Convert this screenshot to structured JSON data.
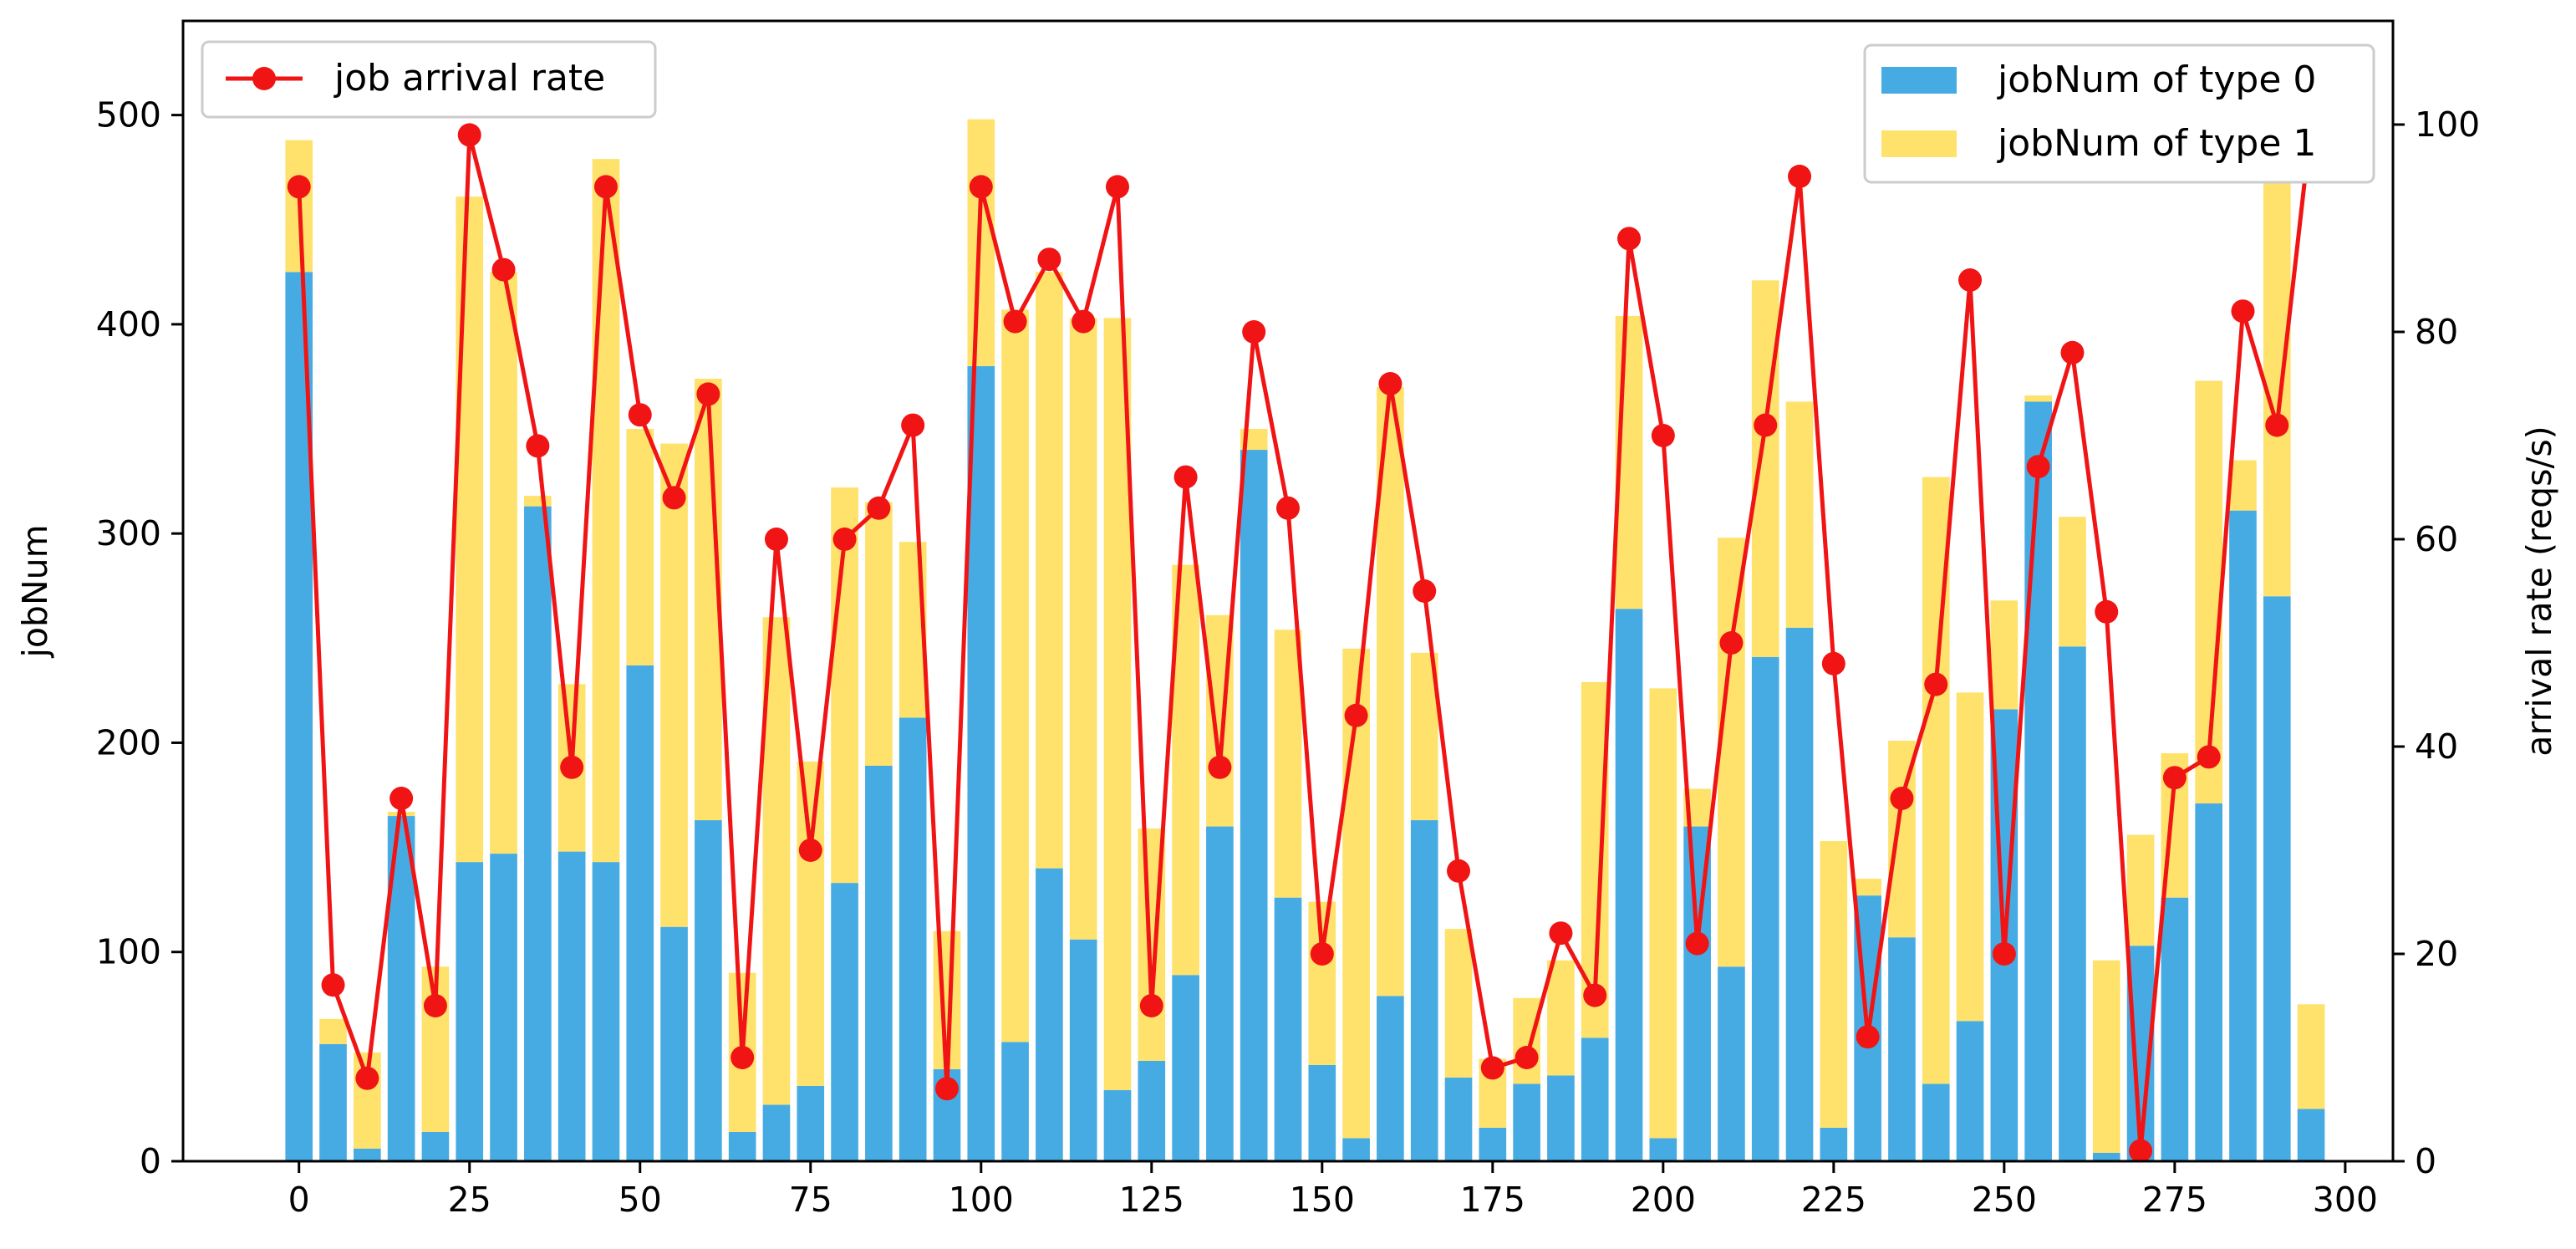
{
  "colors": {
    "type0": "#47ABE3",
    "type1": "#FEE26B",
    "rate": "#F01414",
    "axis": "#000000",
    "legend_border": "#CCCCCC"
  },
  "chart_data": {
    "type": "bar",
    "x": [
      0,
      5,
      10,
      15,
      20,
      25,
      30,
      35,
      40,
      45,
      50,
      55,
      60,
      65,
      70,
      75,
      80,
      85,
      90,
      95,
      100,
      105,
      110,
      115,
      120,
      125,
      130,
      135,
      140,
      145,
      150,
      155,
      160,
      165,
      170,
      175,
      180,
      185,
      190,
      195,
      200,
      205,
      210,
      215,
      220,
      225,
      230,
      235,
      240,
      245,
      250,
      255,
      260,
      265,
      270,
      275,
      280,
      285,
      290,
      295
    ],
    "series": [
      {
        "name": "jobNum of type 0",
        "kind": "bar",
        "axis": "left",
        "values": [
          425,
          56,
          6,
          165,
          14,
          143,
          147,
          313,
          148,
          143,
          237,
          112,
          163,
          14,
          27,
          36,
          133,
          189,
          212,
          44,
          380,
          57,
          140,
          106,
          34,
          48,
          89,
          160,
          340,
          126,
          46,
          11,
          79,
          163,
          40,
          16,
          37,
          41,
          59,
          264,
          11,
          160,
          93,
          241,
          255,
          16,
          127,
          107,
          37,
          67,
          216,
          363,
          246,
          4,
          103,
          126,
          171,
          311,
          270,
          25
        ]
      },
      {
        "name": "jobNum of type 1",
        "kind": "bar",
        "axis": "left",
        "values": [
          63,
          12,
          46,
          2,
          79,
          318,
          278,
          5,
          80,
          336,
          113,
          231,
          211,
          76,
          233,
          155,
          189,
          126,
          84,
          66,
          118,
          350,
          285,
          297,
          369,
          111,
          196,
          101,
          10,
          128,
          78,
          234,
          291,
          80,
          71,
          33,
          41,
          55,
          170,
          140,
          215,
          18,
          205,
          180,
          108,
          137,
          8,
          94,
          290,
          157,
          52,
          3,
          62,
          92,
          53,
          69,
          202,
          24,
          201,
          50
        ]
      },
      {
        "name": "job arrival rate",
        "kind": "line",
        "axis": "right",
        "values": [
          94,
          17,
          8,
          35,
          15,
          99,
          86,
          69,
          38,
          94,
          72,
          64,
          74,
          10,
          60,
          30,
          60,
          63,
          71,
          7,
          94,
          81,
          87,
          81,
          94,
          15,
          66,
          38,
          80,
          63,
          20,
          43,
          75,
          55,
          28,
          9,
          10,
          22,
          16,
          89,
          70,
          21,
          50,
          71,
          95,
          48,
          12,
          35,
          46,
          85,
          20,
          67,
          78,
          53,
          1,
          37,
          39,
          82,
          71,
          100
        ]
      }
    ],
    "xlim": [
      -17,
      307
    ],
    "ylim": [
      0,
      545
    ],
    "ylim_right": [
      0,
      110
    ],
    "xticks": [
      "0",
      "25",
      "50",
      "75",
      "100",
      "125",
      "150",
      "175",
      "200",
      "225",
      "250",
      "275",
      "300"
    ],
    "yticks": [
      "0",
      "100",
      "200",
      "300",
      "400",
      "500"
    ],
    "yticks_right": [
      "0",
      "20",
      "40",
      "60",
      "80",
      "100"
    ],
    "ylabel": "jobNum",
    "ylabel_right": "arrival rate (reqs/s)",
    "legend_left": [
      "job arrival rate"
    ],
    "legend_right": [
      "jobNum of type 0",
      "jobNum of type 1"
    ],
    "legend_placement": {
      "line": "upper-left",
      "bars": "upper-right"
    },
    "grid": false
  }
}
